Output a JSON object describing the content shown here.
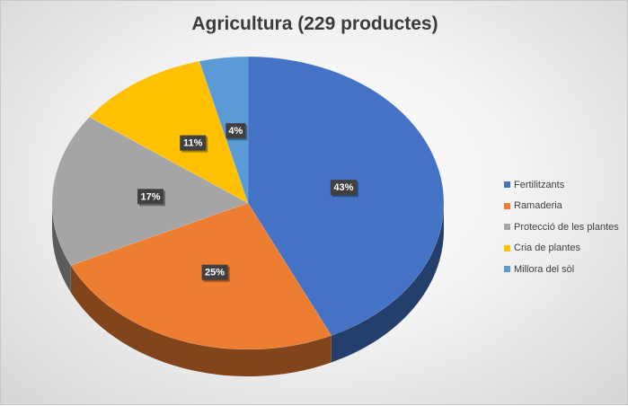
{
  "chart_data": {
    "type": "pie",
    "title": "Agricultura (229 productes)",
    "categories": [
      "Fertilitzants",
      "Ramaderia",
      "Protecció de les plantes",
      "Cria de plantes",
      "Millora del sòl"
    ],
    "values": [
      43,
      25,
      17,
      11,
      4
    ],
    "data_labels": [
      "43%",
      "25%",
      "17%",
      "11%",
      "4%"
    ],
    "colors": [
      "#4472C4",
      "#ED7D31",
      "#A5A5A5",
      "#FFC000",
      "#5B9BD5"
    ],
    "legend_position": "right",
    "style": "3d"
  }
}
